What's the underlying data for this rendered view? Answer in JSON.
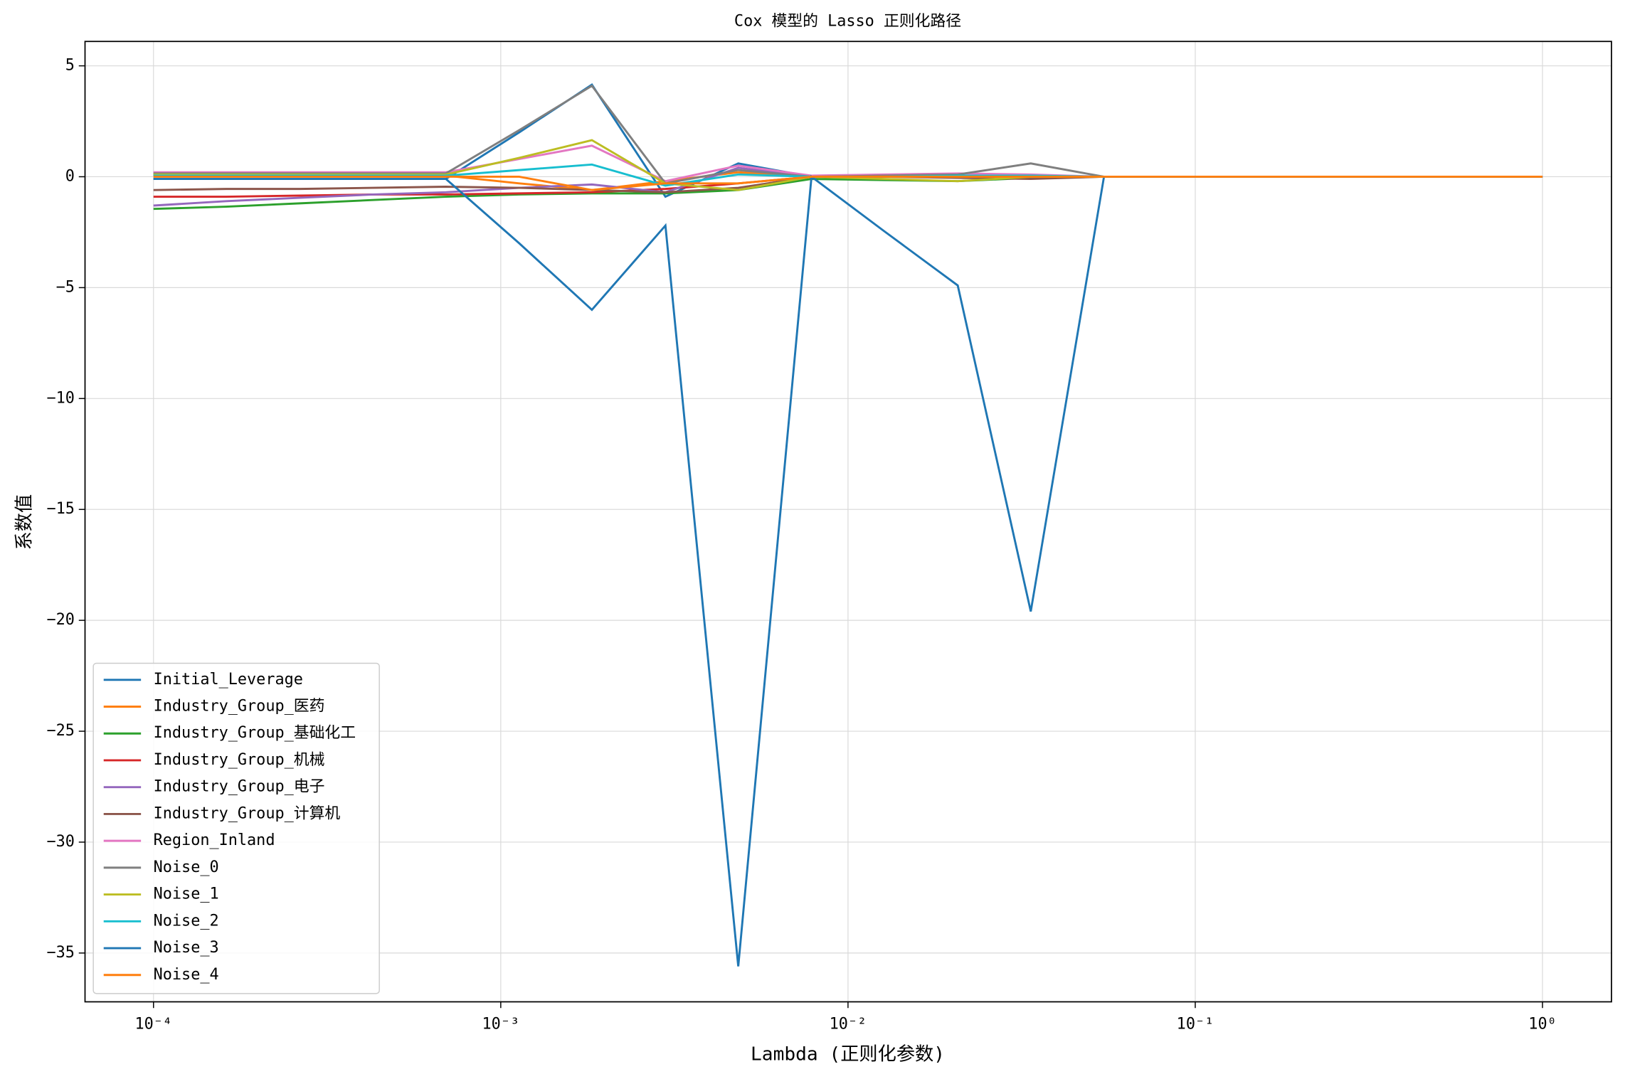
{
  "chart_data": {
    "type": "line",
    "title": "Cox 模型的 Lasso 正则化路径",
    "x_label": "Lambda (正则化参数)",
    "y_label": "系数值",
    "log_x": true,
    "grid": true,
    "legend": "lower left",
    "xlim": [
      6.35e-05,
      1.58
    ],
    "ylim": [
      -37.2,
      6.1
    ],
    "xticks": [
      {
        "value": 0.0001,
        "label": "10⁻⁴"
      },
      {
        "value": 0.001,
        "label": "10⁻³"
      },
      {
        "value": 0.01,
        "label": "10⁻²"
      },
      {
        "value": 0.1,
        "label": "10⁻¹"
      },
      {
        "value": 1,
        "label": "10⁰"
      }
    ],
    "yticks": [
      {
        "value": -35,
        "label": "−35"
      },
      {
        "value": -30,
        "label": "−30"
      },
      {
        "value": -25,
        "label": "−25"
      },
      {
        "value": -20,
        "label": "−20"
      },
      {
        "value": -15,
        "label": "−15"
      },
      {
        "value": -10,
        "label": "−10"
      },
      {
        "value": -5,
        "label": "−5"
      },
      0,
      5
    ],
    "x": [
      0.0001,
      0.000162,
      0.000264,
      0.000428,
      0.000695,
      0.00113,
      0.00183,
      0.00298,
      0.00483,
      0.00785,
      0.0127,
      0.0207,
      0.0336,
      0.0546,
      0.0886,
      0.144,
      0.234,
      0.379,
      0.616,
      1
    ],
    "series": [
      {
        "name": "Initial_Leverage",
        "color": "#1f77b4",
        "values": [
          -0.1,
          -0.1,
          -0.1,
          -0.1,
          -0.1,
          2.0,
          4.15,
          -0.9,
          0.6,
          0,
          0,
          0,
          0,
          0,
          0,
          0,
          0,
          0,
          0,
          0
        ]
      },
      {
        "name": "Industry_Group_医药",
        "color": "#ff7f0e",
        "values": [
          0.05,
          0.05,
          0.05,
          0.05,
          0.05,
          -0.3,
          -0.6,
          -0.2,
          0.2,
          0,
          0,
          0,
          0,
          0,
          0,
          0,
          0,
          0,
          0,
          0
        ]
      },
      {
        "name": "Industry_Group_基础化工",
        "color": "#2ca02c",
        "values": [
          -1.45,
          -1.35,
          -1.2,
          -1.05,
          -0.9,
          -0.8,
          -0.75,
          -0.75,
          -0.6,
          -0.1,
          -0.15,
          -0.2,
          -0.05,
          0,
          0,
          0,
          0,
          0,
          0,
          0
        ]
      },
      {
        "name": "Industry_Group_机械",
        "color": "#d62728",
        "values": [
          -0.9,
          -0.9,
          -0.85,
          -0.8,
          -0.8,
          -0.75,
          -0.7,
          -0.55,
          -0.3,
          0,
          0,
          0,
          0,
          0,
          0,
          0,
          0,
          0,
          0,
          0
        ]
      },
      {
        "name": "Industry_Group_电子",
        "color": "#9467bd",
        "values": [
          -1.3,
          -1.1,
          -0.95,
          -0.8,
          -0.7,
          -0.5,
          -0.35,
          -0.7,
          0.4,
          0,
          0,
          0,
          0,
          0,
          0,
          0,
          0,
          0,
          0,
          0
        ]
      },
      {
        "name": "Industry_Group_计算机",
        "color": "#8c564b",
        "values": [
          -0.6,
          -0.55,
          -0.55,
          -0.5,
          -0.45,
          -0.5,
          -0.6,
          -0.7,
          -0.5,
          0,
          0,
          -0.05,
          -0.1,
          0,
          0,
          0,
          0,
          0,
          0,
          0
        ]
      },
      {
        "name": "Region_Inland",
        "color": "#e377c2",
        "values": [
          0.2,
          0.2,
          0.2,
          0.2,
          0.2,
          0.8,
          1.4,
          -0.2,
          0.5,
          0.05,
          0.1,
          0.15,
          0.1,
          0,
          0,
          0,
          0,
          0,
          0,
          0
        ]
      },
      {
        "name": "Noise_0",
        "color": "#7f7f7f",
        "values": [
          0.15,
          0.15,
          0.15,
          0.15,
          0.15,
          2.1,
          4.1,
          -0.3,
          0.3,
          0,
          0.05,
          0.1,
          0.6,
          0,
          0,
          0,
          0,
          0,
          0,
          0
        ]
      },
      {
        "name": "Noise_1",
        "color": "#bcbd22",
        "values": [
          0.1,
          0.1,
          0.1,
          0.1,
          0.1,
          0.85,
          1.65,
          -0.3,
          -0.6,
          0,
          -0.1,
          -0.2,
          0,
          0,
          0,
          0,
          0,
          0,
          0,
          0
        ]
      },
      {
        "name": "Noise_2",
        "color": "#17becf",
        "values": [
          0.05,
          0.05,
          0.05,
          0.05,
          0.05,
          0.3,
          0.55,
          -0.4,
          0.1,
          0,
          0,
          0.05,
          0.05,
          0,
          0,
          0,
          0,
          0,
          0,
          0
        ]
      },
      {
        "name": "Noise_3",
        "color": "#1f77b4",
        "values": [
          -0.1,
          -0.1,
          -0.1,
          -0.1,
          -0.1,
          -3.0,
          -6.0,
          -2.2,
          -35.6,
          0,
          -2.45,
          -4.9,
          -19.6,
          0,
          0,
          0,
          0,
          0,
          0,
          0
        ]
      },
      {
        "name": "Noise_4",
        "color": "#ff7f0e",
        "values": [
          0,
          0,
          0,
          0,
          0,
          0,
          -0.6,
          -0.3,
          -0.3,
          0,
          0,
          0,
          0,
          0,
          0,
          0,
          0,
          0,
          0,
          0
        ]
      }
    ]
  }
}
